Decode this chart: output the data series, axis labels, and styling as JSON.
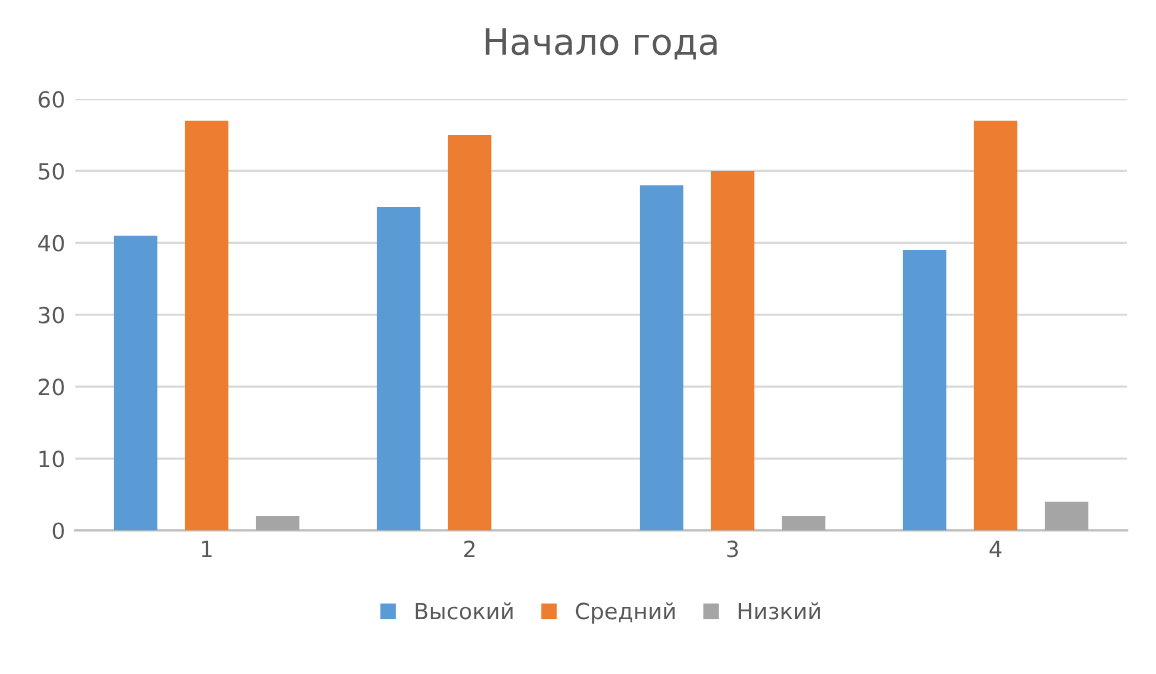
{
  "chart_data": {
    "type": "bar",
    "title": "Начало года",
    "categories": [
      "1",
      "2",
      "3",
      "4"
    ],
    "series": [
      {
        "name": "Высокий",
        "color": "#5b9bd5",
        "values": [
          41,
          45,
          48,
          39
        ]
      },
      {
        "name": "Средний",
        "color": "#ed7d31",
        "values": [
          57,
          55,
          50,
          57
        ]
      },
      {
        "name": "Низкий",
        "color": "#a5a5a5",
        "values": [
          2,
          null,
          2,
          4
        ]
      }
    ],
    "ylim": [
      0,
      60
    ],
    "yticks": [
      0,
      10,
      20,
      30,
      40,
      50,
      60
    ],
    "grid": "y",
    "legend": "bottom"
  }
}
